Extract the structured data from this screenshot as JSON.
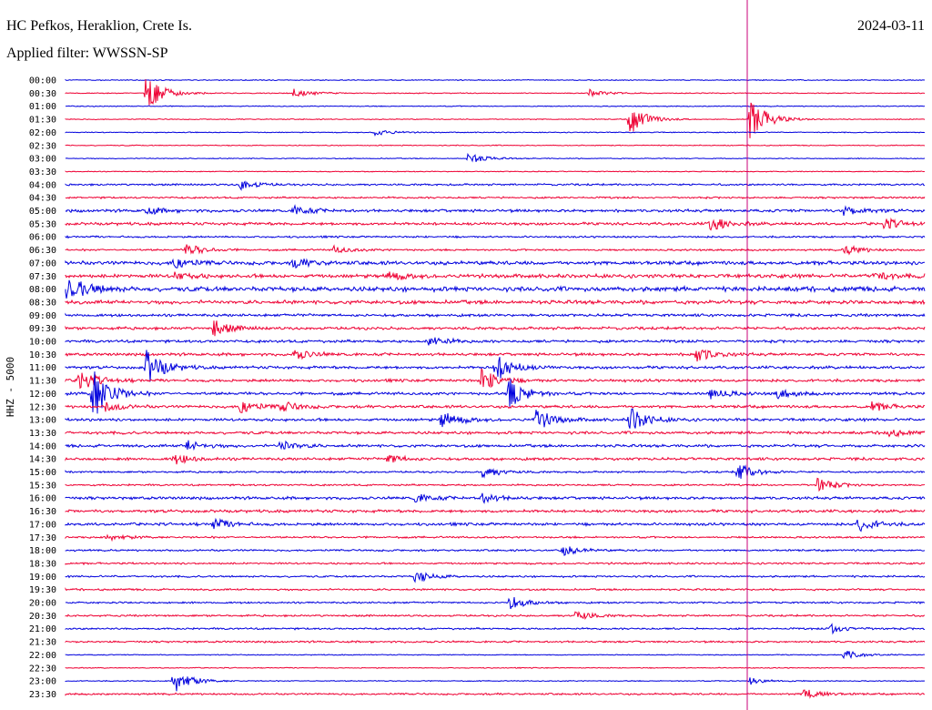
{
  "header": {
    "station": "HC Pefkos, Heraklion, Crete Is.",
    "date": "2024-03-11",
    "filter": "Applied filter: WWSSN-SP"
  },
  "colors": {
    "blue": "#0000dd",
    "red": "#ee0033",
    "marker": "#c8007a"
  },
  "chart_data": {
    "type": "line",
    "title": "HC Pefkos, Heraklion, Crete Is.",
    "ylabel": "HHZ - 5000",
    "time_labels": [
      "00:00",
      "00:30",
      "01:00",
      "01:30",
      "02:00",
      "02:30",
      "03:00",
      "03:30",
      "04:00",
      "04:30",
      "05:00",
      "05:30",
      "06:00",
      "06:30",
      "07:00",
      "07:30",
      "08:00",
      "08:30",
      "09:00",
      "09:30",
      "10:00",
      "10:30",
      "11:00",
      "11:30",
      "12:00",
      "12:30",
      "13:00",
      "13:30",
      "14:00",
      "14:30",
      "15:00",
      "15:30",
      "16:00",
      "16:30",
      "17:00",
      "17:30",
      "18:00",
      "18:30",
      "19:00",
      "19:30",
      "20:00",
      "20:30",
      "21:00",
      "21:30",
      "22:00",
      "22:30",
      "23:00",
      "23:30"
    ],
    "trace_colors": [
      "blue",
      "red"
    ],
    "noise_level": [
      1,
      1,
      1,
      1,
      1,
      1,
      1,
      1,
      2,
      2,
      3,
      3,
      2,
      2,
      4,
      4,
      5,
      4,
      3,
      3,
      3,
      3,
      3,
      3,
      3,
      3,
      3,
      3,
      3,
      3,
      2,
      2,
      3,
      3,
      3,
      2,
      2,
      2,
      2,
      2,
      2,
      2,
      2,
      2,
      1,
      1,
      1,
      2
    ],
    "events": [
      {
        "row": 1,
        "minute": 6,
        "amp": 20
      },
      {
        "row": 1,
        "minute": 17,
        "amp": 5
      },
      {
        "row": 1,
        "minute": 39,
        "amp": 4
      },
      {
        "row": 3,
        "minute": 42,
        "amp": 17
      },
      {
        "row": 3,
        "minute": 51,
        "amp": 24
      },
      {
        "row": 4,
        "minute": 23,
        "amp": 4
      },
      {
        "row": 6,
        "minute": 30,
        "amp": 6
      },
      {
        "row": 8,
        "minute": 13,
        "amp": 6
      },
      {
        "row": 10,
        "minute": 6,
        "amp": 4
      },
      {
        "row": 10,
        "minute": 17,
        "amp": 5
      },
      {
        "row": 10,
        "minute": 58,
        "amp": 6
      },
      {
        "row": 11,
        "minute": 48,
        "amp": 8
      },
      {
        "row": 11,
        "minute": 61,
        "amp": 6
      },
      {
        "row": 13,
        "minute": 9,
        "amp": 7
      },
      {
        "row": 13,
        "minute": 20,
        "amp": 4
      },
      {
        "row": 13,
        "minute": 58,
        "amp": 6
      },
      {
        "row": 14,
        "minute": 8,
        "amp": 6
      },
      {
        "row": 14,
        "minute": 17,
        "amp": 5
      },
      {
        "row": 15,
        "minute": 8,
        "amp": 5
      },
      {
        "row": 15,
        "minute": 24,
        "amp": 5
      },
      {
        "row": 15,
        "minute": 60,
        "amp": 6
      },
      {
        "row": 15,
        "minute": 64,
        "amp": 5
      },
      {
        "row": 16,
        "minute": 0,
        "amp": 10
      },
      {
        "row": 16,
        "minute": 1,
        "amp": 5
      },
      {
        "row": 19,
        "minute": 11,
        "amp": 9
      },
      {
        "row": 20,
        "minute": 27,
        "amp": 6
      },
      {
        "row": 21,
        "minute": 17,
        "amp": 6
      },
      {
        "row": 21,
        "minute": 47,
        "amp": 8
      },
      {
        "row": 22,
        "minute": 6,
        "amp": 20
      },
      {
        "row": 22,
        "minute": 32,
        "amp": 16
      },
      {
        "row": 23,
        "minute": 1,
        "amp": 12
      },
      {
        "row": 23,
        "minute": 31,
        "amp": 14
      },
      {
        "row": 24,
        "minute": 2,
        "amp": 30
      },
      {
        "row": 24,
        "minute": 33,
        "amp": 18
      },
      {
        "row": 24,
        "minute": 48,
        "amp": 6
      },
      {
        "row": 24,
        "minute": 53,
        "amp": 5
      },
      {
        "row": 25,
        "minute": 3,
        "amp": 5
      },
      {
        "row": 25,
        "minute": 13,
        "amp": 7
      },
      {
        "row": 25,
        "minute": 16,
        "amp": 6
      },
      {
        "row": 25,
        "minute": 60,
        "amp": 5
      },
      {
        "row": 26,
        "minute": 28,
        "amp": 10
      },
      {
        "row": 26,
        "minute": 35,
        "amp": 12
      },
      {
        "row": 26,
        "minute": 42,
        "amp": 14
      },
      {
        "row": 27,
        "minute": 61,
        "amp": 5
      },
      {
        "row": 28,
        "minute": 9,
        "amp": 6
      },
      {
        "row": 28,
        "minute": 16,
        "amp": 6
      },
      {
        "row": 29,
        "minute": 8,
        "amp": 6
      },
      {
        "row": 29,
        "minute": 24,
        "amp": 5
      },
      {
        "row": 30,
        "minute": 31,
        "amp": 7
      },
      {
        "row": 30,
        "minute": 50,
        "amp": 10
      },
      {
        "row": 31,
        "minute": 56,
        "amp": 8
      },
      {
        "row": 32,
        "minute": 26,
        "amp": 5
      },
      {
        "row": 32,
        "minute": 31,
        "amp": 5
      },
      {
        "row": 34,
        "minute": 11,
        "amp": 6
      },
      {
        "row": 34,
        "minute": 59,
        "amp": 8
      },
      {
        "row": 35,
        "minute": 3,
        "amp": 4
      },
      {
        "row": 36,
        "minute": 37,
        "amp": 6
      },
      {
        "row": 38,
        "minute": 26,
        "amp": 7
      },
      {
        "row": 40,
        "minute": 33,
        "amp": 8
      },
      {
        "row": 41,
        "minute": 38,
        "amp": 5
      },
      {
        "row": 42,
        "minute": 57,
        "amp": 6
      },
      {
        "row": 44,
        "minute": 58,
        "amp": 5
      },
      {
        "row": 46,
        "minute": 8,
        "amp": 14
      },
      {
        "row": 46,
        "minute": 51,
        "amp": 4
      },
      {
        "row": 47,
        "minute": 55,
        "amp": 6
      }
    ],
    "marker_time": "≈ 23:52"
  }
}
